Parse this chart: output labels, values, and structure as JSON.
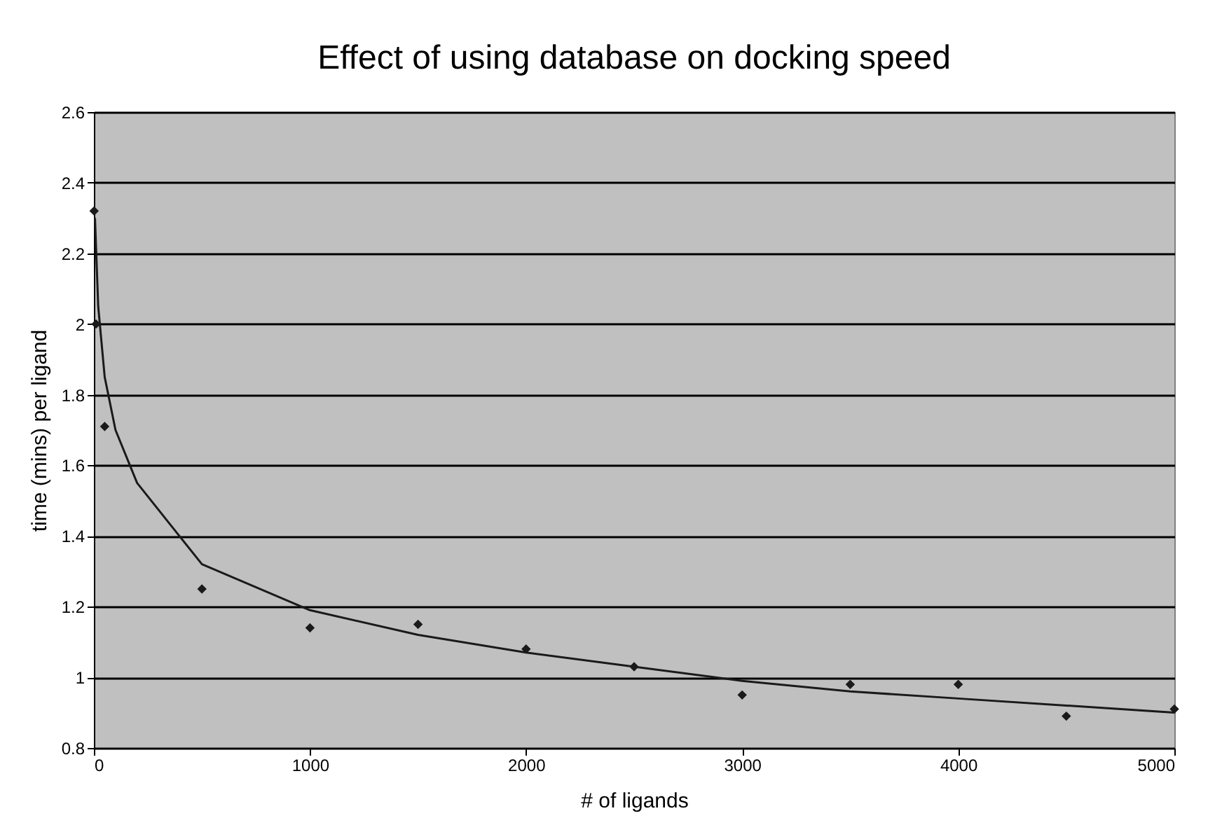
{
  "chart_data": {
    "type": "scatter",
    "title": "Effect of using database on docking speed",
    "xlabel": "# of ligands",
    "ylabel": "time (mins) per ligand",
    "xlim": [
      0,
      5000
    ],
    "xticks": [
      0,
      1000,
      2000,
      3000,
      4000,
      5000
    ],
    "ylim": [
      0.8,
      2.6
    ],
    "yticks": [
      0.8,
      1,
      1.2,
      1.4,
      1.6,
      1.8,
      2,
      2.2,
      2.4,
      2.6
    ],
    "grid": "y",
    "legend": false,
    "series": [
      {
        "type": "scatter",
        "marker": "diamond",
        "color": "#1a1a1a",
        "x": [
          1,
          10,
          50,
          500,
          1000,
          1500,
          2000,
          2500,
          3000,
          3500,
          4000,
          4500,
          5000
        ],
        "values": [
          2.32,
          2.0,
          1.71,
          1.25,
          1.14,
          1.15,
          1.08,
          1.03,
          0.95,
          0.98,
          0.98,
          0.89,
          0.91
        ]
      },
      {
        "type": "line",
        "marker": "none",
        "line_style": "solid",
        "color": "#1a1a1a",
        "x": [
          5,
          20,
          50,
          100,
          200,
          500,
          1000,
          1500,
          2000,
          2500,
          3000,
          3500,
          4000,
          4500,
          5000
        ],
        "values": [
          2.3,
          2.05,
          1.85,
          1.7,
          1.55,
          1.32,
          1.19,
          1.12,
          1.07,
          1.03,
          0.99,
          0.96,
          0.94,
          0.92,
          0.9
        ]
      }
    ]
  }
}
